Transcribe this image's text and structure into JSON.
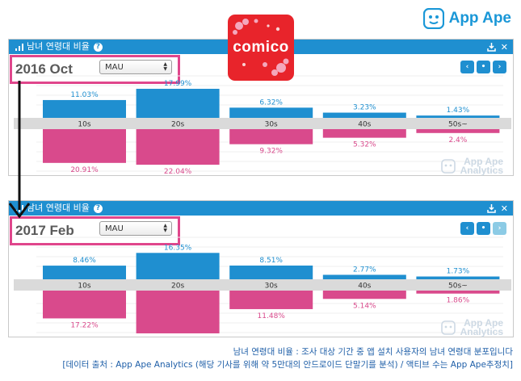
{
  "brand": {
    "name": "App Ape"
  },
  "app_icon": {
    "name": "comico"
  },
  "panels": [
    {
      "title": "남녀 연령대 비율",
      "period": "2016 Oct",
      "metric": "MAU",
      "watermark": {
        "line1": "App Ape",
        "line2": "Analytics"
      }
    },
    {
      "title": "남녀 연령대 비율",
      "period": "2017 Feb",
      "metric": "MAU",
      "watermark": {
        "line1": "App Ape",
        "line2": "Analytics"
      }
    }
  ],
  "caption": {
    "line1": "남녀 연령대 비율 : 조사 대상 기간 중 앱 설치 사용자의 남녀 연령대 분포입니다",
    "line2": "[데이터 출처 : App Ape Analytics (해당 기사를 위해 약 5만대의 안드로이드 단말기를 분석) / 액티브 수는 App Ape추정치]"
  },
  "colors": {
    "male": "#1f8fd0",
    "female": "#d94a8c",
    "band": "#dadada",
    "header": "#1f8fd0",
    "highlight": "#e0468c"
  },
  "chart_data": [
    {
      "type": "bar",
      "title": "",
      "categories": [
        "10s",
        "20s",
        "30s",
        "40s",
        "50s~"
      ],
      "series": [
        {
          "values": [
            11.03,
            17.99,
            6.32,
            3.23,
            1.43
          ]
        },
        {
          "values": [
            20.91,
            22.04,
            9.32,
            5.32,
            2.4
          ]
        }
      ],
      "value_labels": {
        "male": [
          "11.03%",
          "17.99%",
          "6.32%",
          "3.23%",
          "1.43%"
        ],
        "female": [
          "20.91%",
          "22.04%",
          "9.32%",
          "5.32%",
          "2.4%"
        ]
      },
      "layout": "diverging: male bars above center band, female bars below"
    },
    {
      "type": "bar",
      "title": "",
      "categories": [
        "10s",
        "20s",
        "30s",
        "40s",
        "50s~"
      ],
      "series": [
        {
          "values": [
            8.46,
            16.35,
            8.51,
            2.77,
            1.73
          ]
        },
        {
          "values": [
            17.22,
            26.49,
            11.48,
            5.14,
            1.86
          ]
        }
      ],
      "value_labels": {
        "male": [
          "8.46%",
          "16.35%",
          "8.51%",
          "2.77%",
          "1.73%"
        ],
        "female": [
          "17.22%",
          "26.49%",
          "11.48%",
          "5.14%",
          "1.86%"
        ]
      },
      "layout": "diverging: male bars above center band, female bars below"
    }
  ]
}
